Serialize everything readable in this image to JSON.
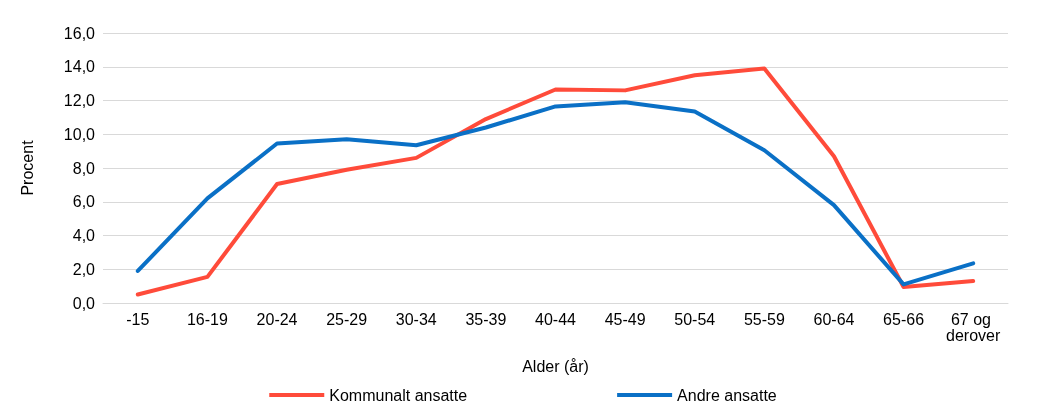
{
  "chart_data": {
    "type": "line",
    "xlabel": "Alder (år)",
    "ylabel": "Procent",
    "categories": [
      "-15",
      "16-19",
      "20-24",
      "25-29",
      "30-34",
      "35-39",
      "40-44",
      "45-49",
      "50-54",
      "55-59",
      "60-64",
      "65-66",
      "67 og derover"
    ],
    "series": [
      {
        "name": "Kommunalt ansatte",
        "color": "#ff4b3a",
        "values": [
          0.5,
          1.55,
          7.05,
          7.9,
          8.6,
          10.9,
          12.65,
          12.6,
          13.5,
          13.9,
          8.7,
          0.95,
          1.3
        ]
      },
      {
        "name": "Andre ansatte",
        "color": "#0a70c6",
        "values": [
          1.9,
          6.2,
          9.45,
          9.7,
          9.35,
          10.4,
          11.65,
          11.9,
          11.35,
          9.05,
          5.8,
          1.1,
          2.35
        ]
      }
    ],
    "ylim": [
      0,
      16
    ],
    "yticks": [
      {
        "value": 0,
        "label": "0,0"
      },
      {
        "value": 2,
        "label": "2,0"
      },
      {
        "value": 4,
        "label": "4,0"
      },
      {
        "value": 6,
        "label": "6,0"
      },
      {
        "value": 8,
        "label": "8,0"
      },
      {
        "value": 10,
        "label": "10,0"
      },
      {
        "value": 12,
        "label": "12,0"
      },
      {
        "value": 14,
        "label": "14,0"
      },
      {
        "value": 16,
        "label": "16,0"
      }
    ],
    "grid": "y",
    "legend": "bottom",
    "marker": "none",
    "line_style": "solid"
  }
}
